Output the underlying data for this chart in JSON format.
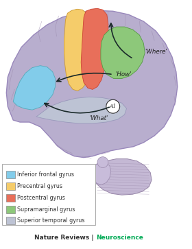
{
  "legend_items": [
    {
      "label": "Inferior frontal gyrus",
      "color": "#82CCEA"
    },
    {
      "label": "Precentral gyrus",
      "color": "#F5CC6A"
    },
    {
      "label": "Postcentral gyrus",
      "color": "#E86F5A"
    },
    {
      "label": "Supramarginal gyrus",
      "color": "#8DC87A"
    },
    {
      "label": "Superior temporal gyrus",
      "color": "#BDC3D4"
    }
  ],
  "neuroscience_color": "#00AA55",
  "brain_base_color": "#B8AECE",
  "arrow_color": "#1a2a2a",
  "background_color": "#ffffff"
}
